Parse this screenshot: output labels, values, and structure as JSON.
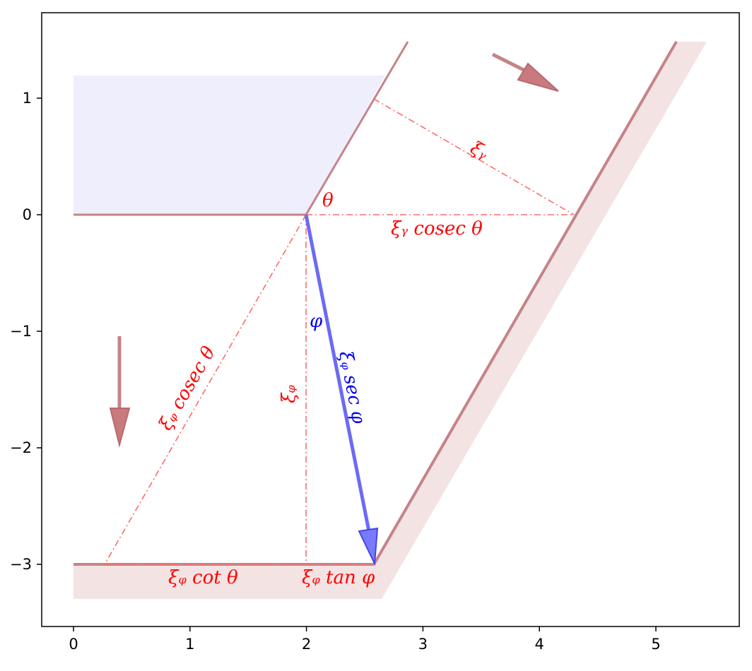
{
  "axes": {
    "x_ticks": [
      {
        "value": 0,
        "label": "0"
      },
      {
        "value": 1,
        "label": "1"
      },
      {
        "value": 2,
        "label": "2"
      },
      {
        "value": 3,
        "label": "3"
      },
      {
        "value": 4,
        "label": "4"
      },
      {
        "value": 5,
        "label": "5"
      }
    ],
    "y_ticks": [
      {
        "value": 1,
        "label": "1"
      },
      {
        "value": 0,
        "label": "0"
      },
      {
        "value": -1,
        "label": "−1"
      },
      {
        "value": -2,
        "label": "−2"
      },
      {
        "value": -3,
        "label": "−3"
      }
    ]
  },
  "annotations": {
    "theta": "θ",
    "phi": "φ",
    "xi_y": "ξᵧ",
    "xi_y_cosec": "ξᵧ cosec θ",
    "xi_z_cosec": "ξᵩ cosec θ",
    "xi_z": "ξᵩ",
    "xi_z_sec": "ξᵩ sec φ",
    "xi_z_cot": "ξᵩ cot θ",
    "xi_z_tan": "ξᵩ tan φ"
  },
  "colors": {
    "boundary": "#c48488",
    "construction": "#ff5555",
    "vector": "#5a5af0",
    "label_red": "#ff0000",
    "label_blue": "#0000ee",
    "shaded_upper": "#eeeefc",
    "shaded_lower": "#f3e3e3"
  }
}
